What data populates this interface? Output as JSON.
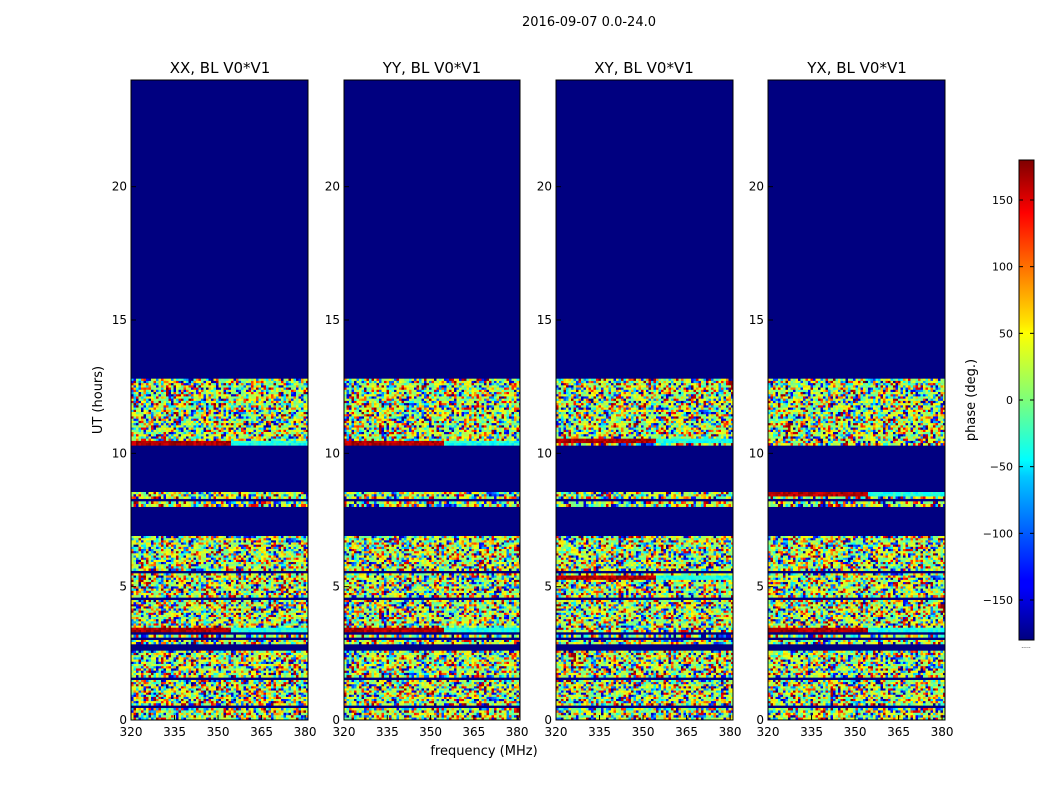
{
  "chart_data": {
    "type": "heatmap",
    "title": "2016-09-07 0.0-24.0",
    "xlabel": "frequency (MHz)",
    "ylabel": "UT (hours)",
    "xlim": [
      320,
      381
    ],
    "ylim": [
      0,
      24
    ],
    "xticks": [
      "320",
      "335",
      "350",
      "365",
      "380"
    ],
    "yticks": [
      "0",
      "5",
      "10",
      "15",
      "20"
    ],
    "panels": [
      {
        "title": "XX, BL V0*V1",
        "strong_phase_rows": [
          3.4,
          10.35
        ]
      },
      {
        "title": "YY, BL V0*V1",
        "strong_phase_rows": [
          3.35,
          10.35
        ]
      },
      {
        "title": "XY, BL V0*V1",
        "strong_phase_rows": [
          10.5,
          5.3
        ]
      },
      {
        "title": "YX, BL V0*V1",
        "strong_phase_rows": [
          8.5,
          3.4
        ]
      }
    ],
    "data_bands": [
      [
        0.0,
        0.45
      ],
      [
        0.55,
        1.5
      ],
      [
        1.6,
        2.6
      ],
      [
        2.85,
        3.0
      ],
      [
        3.1,
        3.2
      ],
      [
        3.3,
        4.5
      ],
      [
        4.6,
        5.5
      ],
      [
        5.6,
        6.9
      ],
      [
        8.0,
        8.2
      ],
      [
        8.3,
        8.55
      ],
      [
        10.3,
        12.8
      ]
    ],
    "colorbar": {
      "label": "phase (deg.)",
      "range": [
        -180,
        180
      ],
      "ticks": [
        "150",
        "100",
        "50",
        "0",
        "−50",
        "−100",
        "−150"
      ],
      "tick_values": [
        150,
        100,
        50,
        0,
        -50,
        -100,
        -150
      ],
      "colormap": "jet"
    },
    "colors": {
      "background": "#000080"
    },
    "colorbar_extra": "....."
  }
}
